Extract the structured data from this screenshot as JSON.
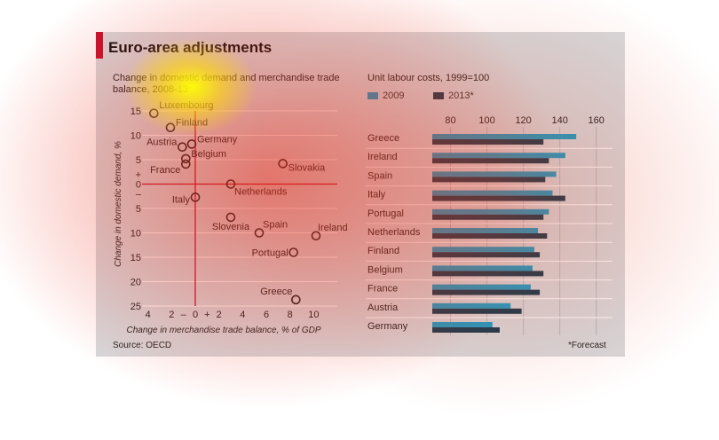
{
  "title": "Euro-area adjustments",
  "source": "Source: OECD",
  "footnote": "*Forecast",
  "colors": {
    "accent": "#c8102e",
    "bar2009": "#1a9ec7",
    "bar2013": "#153b4f",
    "zero_line": "#c8102e"
  },
  "chart_data": [
    {
      "type": "scatter",
      "title": "Change in domestic demand and merchandise trade balance, 2008-13*",
      "xlabel": "Change in merchandise trade balance, % of GDP",
      "ylabel": "Change in domestic demand, %",
      "xlim": [
        -4.5,
        12
      ],
      "ylim": [
        -25,
        15
      ],
      "x_ticks": [
        {
          "v": -4,
          "label": "4"
        },
        {
          "v": -2,
          "label": "2"
        },
        {
          "v": -1,
          "label": "–"
        },
        {
          "v": 0,
          "label": "0"
        },
        {
          "v": 1,
          "label": "+"
        },
        {
          "v": 2,
          "label": "2"
        },
        {
          "v": 4,
          "label": "4"
        },
        {
          "v": 6,
          "label": "6"
        },
        {
          "v": 8,
          "label": "8"
        },
        {
          "v": 10,
          "label": "10"
        }
      ],
      "y_ticks": [
        {
          "v": 15,
          "label": "15"
        },
        {
          "v": 10,
          "label": "10"
        },
        {
          "v": 5,
          "label": "5"
        },
        {
          "v": 2,
          "label": "+"
        },
        {
          "v": 0,
          "label": "0"
        },
        {
          "v": -2,
          "label": "–"
        },
        {
          "v": -5,
          "label": "5"
        },
        {
          "v": -10,
          "label": "10"
        },
        {
          "v": -15,
          "label": "15"
        },
        {
          "v": -20,
          "label": "20"
        },
        {
          "v": -25,
          "label": "25"
        }
      ],
      "points": [
        {
          "label": "Luxembourg",
          "x": -3.5,
          "y": 14.5
        },
        {
          "label": "Finland",
          "x": -2.1,
          "y": 11.6
        },
        {
          "label": "Austria",
          "x": -1.1,
          "y": 7.6
        },
        {
          "label": "Germany",
          "x": -0.3,
          "y": 8.2
        },
        {
          "label": "Belgium",
          "x": -0.8,
          "y": 5.2
        },
        {
          "label": "France",
          "x": -0.8,
          "y": 4.1
        },
        {
          "label": "Slovakia",
          "x": 7.4,
          "y": 4.2
        },
        {
          "label": "Netherlands",
          "x": 3.0,
          "y": 0.0
        },
        {
          "label": "Italy",
          "x": 0.0,
          "y": -2.7
        },
        {
          "label": "Slovenia",
          "x": 3.0,
          "y": -6.8
        },
        {
          "label": "Spain",
          "x": 5.4,
          "y": -10.0
        },
        {
          "label": "Ireland",
          "x": 10.2,
          "y": -10.6
        },
        {
          "label": "Portugal",
          "x": 8.3,
          "y": -14.0
        },
        {
          "label": "Greece",
          "x": 8.5,
          "y": -23.7
        }
      ]
    },
    {
      "type": "bar",
      "title": "Unit labour costs, 1999=100",
      "xlim": [
        70,
        165
      ],
      "x_ticks": [
        80,
        100,
        120,
        140,
        160
      ],
      "categories": [
        "Greece",
        "Ireland",
        "Spain",
        "Italy",
        "Portugal",
        "Netherlands",
        "Finland",
        "Belgium",
        "France",
        "Austria",
        "Germany"
      ],
      "series": [
        {
          "name": "2009",
          "values": [
            149,
            143,
            138,
            136,
            134,
            128,
            126,
            125,
            124,
            113,
            103
          ]
        },
        {
          "name": "2013*",
          "values": [
            131,
            134,
            132,
            143,
            131,
            133,
            129,
            131,
            129,
            119,
            107
          ]
        }
      ]
    }
  ]
}
